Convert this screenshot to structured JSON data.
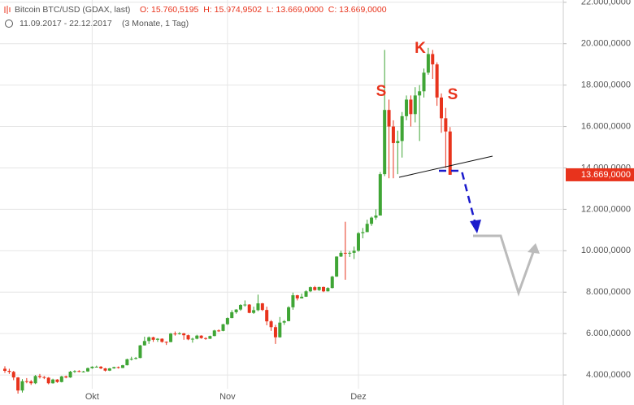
{
  "header": {
    "instrument": "Bitcoin BTC/USD (GDAX, last)",
    "ohlc": "O: 15.760,5195  H: 15.974,9502  L: 13.669,0000  C: 13.669,0000",
    "range": "11.09.2017 - 22.12.2017",
    "period": "(3 Monate, 1 Tag)"
  },
  "chart_data": {
    "type": "candlestick",
    "categories": [
      null,
      null,
      null,
      null,
      null,
      null,
      null,
      null,
      null,
      null,
      null,
      null,
      null,
      null,
      null,
      null,
      null,
      null,
      null,
      null,
      "Okt",
      null,
      null,
      null,
      null,
      null,
      null,
      null,
      null,
      null,
      null,
      null,
      null,
      null,
      null,
      null,
      null,
      null,
      null,
      null,
      null,
      null,
      null,
      null,
      null,
      null,
      null,
      null,
      null,
      null,
      null,
      "Nov",
      null,
      null,
      null,
      null,
      null,
      null,
      null,
      null,
      null,
      null,
      null,
      null,
      null,
      null,
      null,
      null,
      null,
      null,
      null,
      null,
      null,
      null,
      null,
      null,
      null,
      null,
      null,
      null,
      null,
      "Dez",
      null,
      null,
      null,
      null,
      null,
      null,
      null,
      null,
      null,
      null,
      null,
      null,
      null,
      null,
      null,
      null,
      null,
      null,
      null,
      null,
      null
    ],
    "open": [
      4300,
      4200,
      4150,
      3880,
      3250,
      3700,
      3690,
      3600,
      3950,
      3900,
      3870,
      3600,
      3780,
      3660,
      3930,
      3880,
      4160,
      4190,
      4170,
      4170,
      4330,
      4400,
      4400,
      4320,
      4210,
      4320,
      4380,
      4340,
      4470,
      4760,
      4780,
      4820,
      5430,
      5640,
      5820,
      5700,
      5750,
      5600,
      5590,
      6000,
      5980,
      6010,
      5920,
      5720,
      5750,
      5900,
      5780,
      5750,
      5880,
      6150,
      6130,
      6450,
      6750,
      7030,
      7160,
      7380,
      7400,
      7000,
      7130,
      7460,
      7140,
      6590,
      6310,
      5820,
      6530,
      6600,
      7270,
      7850,
      7700,
      7780,
      8040,
      8240,
      8100,
      8250,
      8040,
      8200,
      8750,
      9720,
      9900,
      9880,
      9900,
      10000,
      10850,
      10900,
      11300,
      11600,
      11700,
      13700,
      16800,
      16000,
      15200,
      15300,
      16500,
      17300,
      16600,
      17500,
      17700,
      18600,
      19500,
      19000,
      17400,
      16400,
      15760.5195
    ],
    "high": [
      4420,
      4300,
      4200,
      3900,
      3800,
      3850,
      3760,
      4000,
      4050,
      3950,
      3900,
      3820,
      3800,
      3960,
      3970,
      4200,
      4230,
      4230,
      4200,
      4360,
      4420,
      4450,
      4430,
      4340,
      4340,
      4400,
      4410,
      4490,
      4790,
      4880,
      4870,
      5450,
      5850,
      5860,
      5850,
      5780,
      5770,
      5620,
      6030,
      6100,
      6070,
      6030,
      5950,
      5800,
      5940,
      5920,
      5820,
      5900,
      6180,
      6200,
      6470,
      6780,
      7130,
      7180,
      7420,
      7600,
      7420,
      7300,
      7880,
      7480,
      7300,
      6650,
      6420,
      6800,
      6650,
      7320,
      7980,
      7870,
      7930,
      8090,
      8270,
      8300,
      8260,
      8270,
      8240,
      8790,
      9730,
      10000,
      11400,
      9980,
      10200,
      10900,
      11100,
      11500,
      11650,
      12000,
      13800,
      19700,
      17300,
      16300,
      15800,
      16700,
      17500,
      17500,
      17900,
      18000,
      18800,
      19800,
      19700,
      19100,
      17600,
      16900,
      15974.9502
    ],
    "low": [
      4100,
      4050,
      3750,
      3100,
      3150,
      3600,
      3520,
      3560,
      3830,
      3800,
      3550,
      3580,
      3620,
      3640,
      3840,
      3860,
      4100,
      4130,
      4120,
      4150,
      4300,
      4360,
      4280,
      4170,
      4190,
      4300,
      4310,
      4330,
      4460,
      4700,
      4750,
      4810,
      5420,
      5500,
      5600,
      5600,
      5560,
      5450,
      5580,
      5900,
      5950,
      5700,
      5680,
      5560,
      5720,
      5750,
      5700,
      5740,
      5870,
      6080,
      6110,
      6420,
      6740,
      6960,
      7100,
      7300,
      6980,
      6950,
      7080,
      7090,
      6400,
      6130,
      5500,
      5800,
      6420,
      6590,
      7150,
      7600,
      7700,
      7770,
      8000,
      8070,
      8060,
      8000,
      8030,
      8180,
      8740,
      9700,
      8600,
      9700,
      9600,
      9950,
      10600,
      10900,
      11200,
      11500,
      11700,
      13600,
      13500,
      13500,
      13700,
      14500,
      16300,
      16000,
      16200,
      15300,
      17400,
      18500,
      18300,
      17000,
      15700,
      14000,
      13669
    ],
    "close": [
      4200,
      4150,
      3880,
      3250,
      3700,
      3690,
      3600,
      3950,
      3900,
      3870,
      3600,
      3780,
      3660,
      3930,
      3880,
      4160,
      4190,
      4170,
      4170,
      4330,
      4400,
      4400,
      4320,
      4210,
      4320,
      4380,
      4340,
      4470,
      4760,
      4780,
      4820,
      5430,
      5640,
      5820,
      5700,
      5750,
      5600,
      5590,
      6000,
      5980,
      6010,
      5920,
      5720,
      5750,
      5900,
      5780,
      5750,
      5880,
      6150,
      6130,
      6450,
      6750,
      7030,
      7160,
      7380,
      7400,
      7000,
      7130,
      7460,
      7140,
      6590,
      6310,
      5820,
      6530,
      6600,
      7270,
      7850,
      7700,
      7780,
      8040,
      8240,
      8100,
      8250,
      8040,
      8200,
      8750,
      9720,
      9900,
      9880,
      9900,
      10000,
      10850,
      10900,
      11300,
      11600,
      11700,
      13700,
      16800,
      16000,
      15200,
      15300,
      16500,
      17300,
      16600,
      17500,
      17700,
      18600,
      19500,
      19000,
      17400,
      16400,
      15760,
      13669
    ],
    "up_color": "#3fa535",
    "down_color": "#e8331c",
    "ylim": [
      2550,
      22110
    ],
    "yticks": [
      {
        "value": 4000,
        "label": "4.000,0000"
      },
      {
        "value": 6000,
        "label": "6.000,0000"
      },
      {
        "value": 8000,
        "label": "8.000,0000"
      },
      {
        "value": 10000,
        "label": "10.000,0000"
      },
      {
        "value": 12000,
        "label": "12.000,0000"
      },
      {
        "value": 14000,
        "label": "14.000,0000"
      },
      {
        "value": 16000,
        "label": "16.000,0000"
      },
      {
        "value": 18000,
        "label": "18.000,0000"
      },
      {
        "value": 20000,
        "label": "20.000,0000"
      },
      {
        "value": 22000,
        "label": "22.000,0000"
      }
    ],
    "grid": true,
    "current_price": {
      "value": 13669,
      "label": "13.669,0000"
    },
    "annotations": [
      "S",
      "K",
      "S"
    ]
  }
}
